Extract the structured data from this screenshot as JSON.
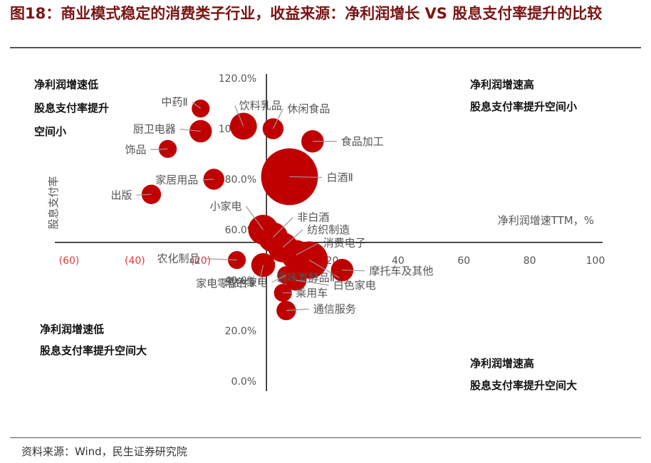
{
  "figure": {
    "title": "图18：商业模式稳定的消费类子行业，收益来源：净利润增长 VS 股息支付率提升的比较",
    "source": "资料来源：Wind，民生证券研究院"
  },
  "colors": {
    "bubble": "#c00000",
    "axis": "#111111",
    "leader": "#999999"
  },
  "chart_data": {
    "type": "scatter",
    "xlabel": "净利润增速TTM，%",
    "ylabel": "股息支付率",
    "xlim": [
      -60,
      100
    ],
    "ylim": [
      0,
      120
    ],
    "x_ticks": [
      "(60)",
      "(40)",
      "(20)",
      "0",
      "20",
      "40",
      "60",
      "80",
      "100"
    ],
    "y_ticks": [
      "0.0%",
      "20.0%",
      "40.0%",
      "60.0%",
      "80.0%",
      "100.0%",
      "120.0%"
    ],
    "quadrant_notes": {
      "top_left": [
        "净利润增速低",
        "股息支付率提升",
        "空间小"
      ],
      "top_right": [
        "净利润增速高",
        "股息支付率提升空间小"
      ],
      "bottom_left": [
        "净利润增速低",
        "股息支付率提升空间大"
      ],
      "bottom_right": [
        "净利润增速高",
        "股息支付率提升空间大"
      ]
    },
    "points": [
      {
        "label": "中药Ⅱ",
        "x": -20,
        "y": 108,
        "size": 1.2
      },
      {
        "label": "饮料乳品",
        "x": -7,
        "y": 101,
        "size": 1.8
      },
      {
        "label": "休闲食品",
        "x": 2,
        "y": 100,
        "size": 1.4
      },
      {
        "label": "厨卫电器",
        "x": -20,
        "y": 99,
        "size": 1.5
      },
      {
        "label": "食品加工",
        "x": 14,
        "y": 95,
        "size": 1.5
      },
      {
        "label": "饰品",
        "x": -30,
        "y": 92,
        "size": 1.2
      },
      {
        "label": "白酒Ⅱ",
        "x": 7,
        "y": 81,
        "size": 3.8
      },
      {
        "label": "家居用品",
        "x": -16,
        "y": 80,
        "size": 1.4
      },
      {
        "label": "出版",
        "x": -35,
        "y": 74,
        "size": 1.3
      },
      {
        "label": "小家电",
        "x": -1,
        "y": 60,
        "size": 2.0
      },
      {
        "label": "非白酒",
        "x": 2,
        "y": 57,
        "size": 2.0
      },
      {
        "label": "纺织制造",
        "x": 5,
        "y": 53,
        "size": 2.0
      },
      {
        "label": "消费电子",
        "x": 9,
        "y": 50,
        "size": 2.0
      },
      {
        "label": "农化制品",
        "x": -9,
        "y": 48,
        "size": 1.2
      },
      {
        "label": "家电零部件Ⅱ",
        "x": -1,
        "y": 46,
        "size": 1.6
      },
      {
        "label": "调味发酵品Ⅱ",
        "x": 13,
        "y": 48,
        "size": 2.5
      },
      {
        "label": "摩托车及其他",
        "x": 23,
        "y": 44,
        "size": 1.5
      },
      {
        "label": "乘用车",
        "x": 5,
        "y": 35,
        "size": 1.2
      },
      {
        "label": "白色家电",
        "x": 9,
        "y": 40,
        "size": 1.4
      },
      {
        "label": "黑色家电",
        "x": 6,
        "y": 42,
        "size": 1.2
      },
      {
        "label": "通信服务",
        "x": 6,
        "y": 28,
        "size": 1.3
      }
    ]
  }
}
